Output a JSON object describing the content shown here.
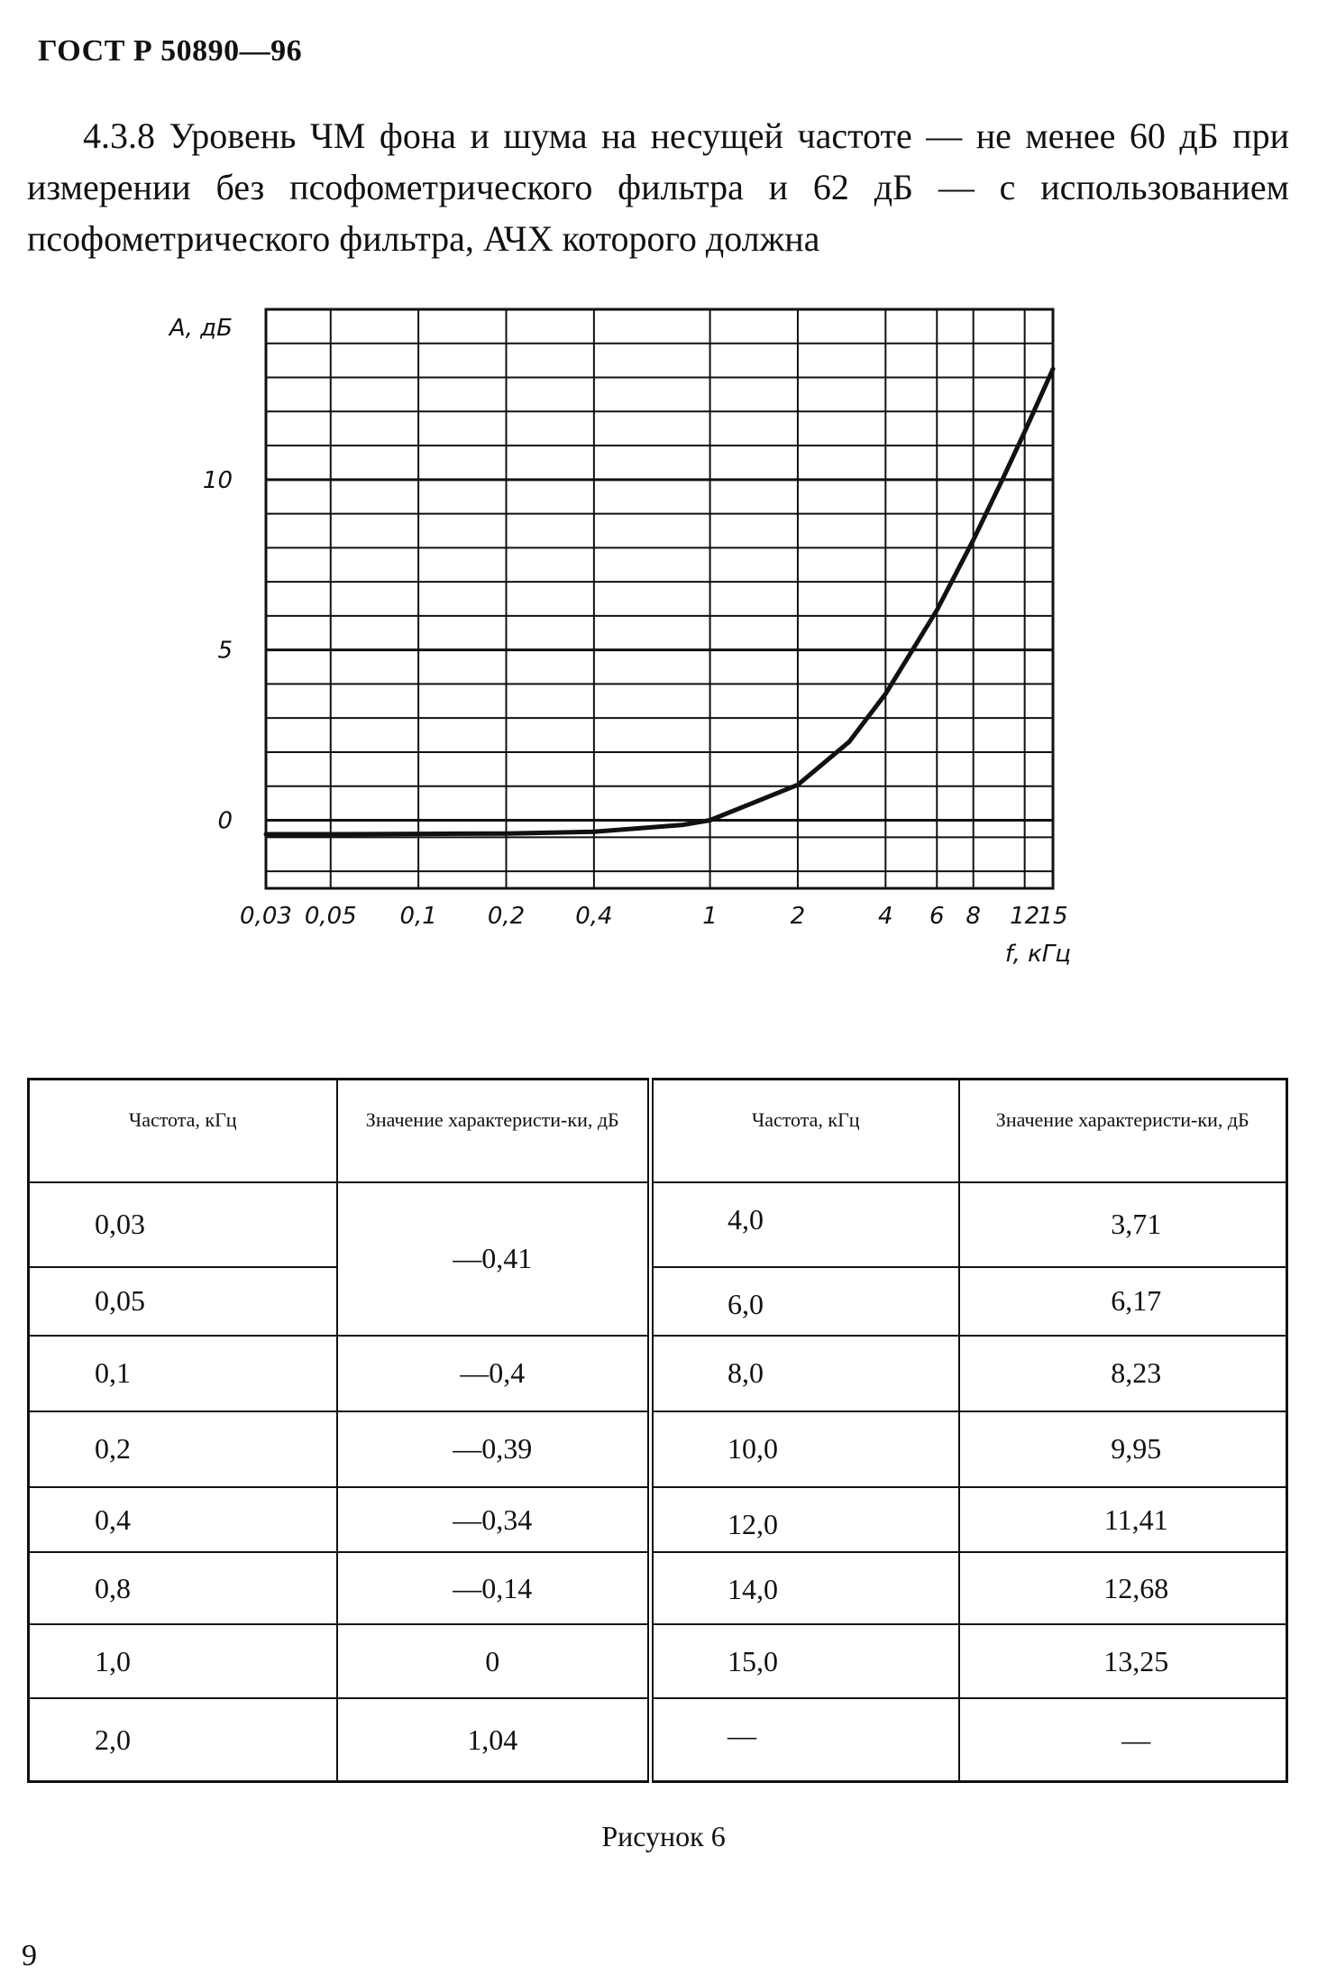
{
  "header": "ГОСТ Р 50890—96",
  "paragraph": "4.3.8 Уровень ЧМ фона и шума на несущей частоте — не менее 60 дБ при измерении без псофометрического фильтра и 62 дБ — с использованием псофометрического фильтра, АЧХ которого должна",
  "chart_data": {
    "type": "line",
    "ylabel": "А, дБ",
    "xlabel": "f, кГц",
    "x_scale": "log",
    "xlim": [
      0.03,
      15
    ],
    "ylim": [
      -2,
      15
    ],
    "grid": true,
    "y_tick_labels": [
      {
        "value": 10,
        "label": "10"
      },
      {
        "value": 5,
        "label": "5"
      },
      {
        "value": 0,
        "label": "0"
      }
    ],
    "x_tick_labels": [
      {
        "value": 0.03,
        "label": "0,03"
      },
      {
        "value": 0.05,
        "label": "0,05"
      },
      {
        "value": 0.1,
        "label": "0,1"
      },
      {
        "value": 0.2,
        "label": "0,2"
      },
      {
        "value": 0.4,
        "label": "0,4"
      },
      {
        "value": 1,
        "label": "1"
      },
      {
        "value": 2,
        "label": "2"
      },
      {
        "value": 4,
        "label": "4"
      },
      {
        "value": 6,
        "label": "6"
      },
      {
        "value": 8,
        "label": "8"
      },
      {
        "value": 12,
        "label": "12"
      },
      {
        "value": 15,
        "label": "15"
      }
    ],
    "x_grid": [
      0.05,
      0.1,
      0.2,
      0.4,
      1,
      2,
      4,
      6,
      8,
      12
    ],
    "y_grid": [
      -1.5,
      -0.5,
      0,
      1,
      2,
      3,
      4,
      5,
      6,
      7,
      8,
      9,
      10,
      11,
      12,
      13,
      14
    ],
    "x": [
      0.03,
      0.05,
      0.1,
      0.2,
      0.4,
      0.8,
      1.0,
      2.0,
      3.0,
      4.0,
      6.0,
      8.0,
      10.0,
      12.0,
      14.0,
      15.0
    ],
    "y": [
      -0.41,
      -0.41,
      -0.4,
      -0.39,
      -0.34,
      -0.14,
      0,
      1.04,
      2.3,
      3.71,
      6.17,
      8.23,
      9.95,
      11.41,
      12.68,
      13.25
    ]
  },
  "table": {
    "headers": [
      "Частота, кГц",
      "Значение характеристи-ки, дБ",
      "Частота, кГц",
      "Значение характеристи-ки, дБ"
    ],
    "left_rows": [
      {
        "freq": "0,03",
        "value": "—0,41"
      },
      {
        "freq": "0,05",
        "value": ""
      },
      {
        "freq": "0,1",
        "value": "—0,4"
      },
      {
        "freq": "0,2",
        "value": "—0,39"
      },
      {
        "freq": "0,4",
        "value": "—0,34"
      },
      {
        "freq": "0,8",
        "value": "—0,14"
      },
      {
        "freq": "1,0",
        "value": "0"
      },
      {
        "freq": "2,0",
        "value": "1,04"
      }
    ],
    "right_rows": [
      {
        "freq": "4,0",
        "value": "3,71"
      },
      {
        "freq": "6,0",
        "value": "6,17"
      },
      {
        "freq": "8,0",
        "value": "8,23"
      },
      {
        "freq": "10,0",
        "value": "9,95"
      },
      {
        "freq": "12,0",
        "value": "11,41"
      },
      {
        "freq": "14,0",
        "value": "12,68"
      },
      {
        "freq": "15,0",
        "value": "13,25"
      },
      {
        "freq": "—",
        "value": "—"
      }
    ]
  },
  "caption": "Рисунок 6",
  "page_number": "9"
}
